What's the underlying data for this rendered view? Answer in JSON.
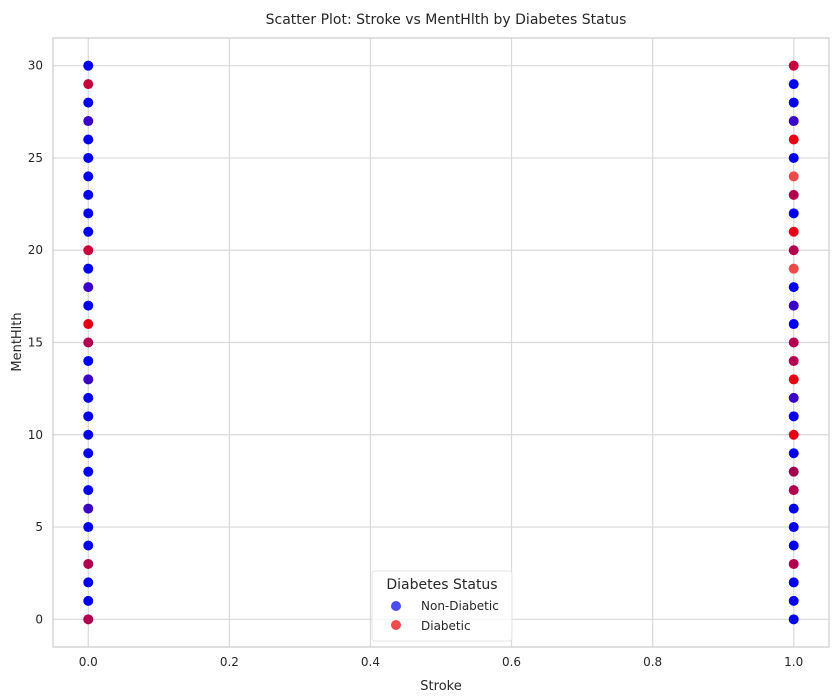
{
  "chart_data": {
    "type": "scatter",
    "title": "Scatter Plot: Stroke vs MentHlth by Diabetes Status",
    "xlabel": "Stroke",
    "ylabel": "MentHlth",
    "xlim": [
      -0.05,
      1.05
    ],
    "ylim": [
      -1.5,
      31.5
    ],
    "xticks": [
      0.0,
      0.2,
      0.4,
      0.6,
      0.8,
      1.0
    ],
    "xtick_labels": [
      "0.0",
      "0.2",
      "0.4",
      "0.6",
      "0.8",
      "1.0"
    ],
    "yticks": [
      0,
      5,
      10,
      15,
      20,
      25,
      30
    ],
    "ytick_labels": [
      "0",
      "5",
      "10",
      "15",
      "20",
      "25",
      "30"
    ],
    "grid": true,
    "legend": {
      "title": "Diabetes Status",
      "placement": "lower-center",
      "entries": [
        {
          "label": "Non-Diabetic",
          "color": "#4b4bf0"
        },
        {
          "label": "Diabetic",
          "color": "#f04b4b"
        }
      ]
    },
    "points": [
      {
        "x": 0,
        "y": 0,
        "color": "#b0004f"
      },
      {
        "x": 0,
        "y": 1,
        "color": "#0000ee"
      },
      {
        "x": 0,
        "y": 2,
        "color": "#0000ee"
      },
      {
        "x": 0,
        "y": 3,
        "color": "#b0004f"
      },
      {
        "x": 0,
        "y": 4,
        "color": "#0000ee"
      },
      {
        "x": 0,
        "y": 5,
        "color": "#0000ee"
      },
      {
        "x": 0,
        "y": 6,
        "color": "#3a00c8"
      },
      {
        "x": 0,
        "y": 7,
        "color": "#0000ee"
      },
      {
        "x": 0,
        "y": 8,
        "color": "#0000ee"
      },
      {
        "x": 0,
        "y": 9,
        "color": "#0000ee"
      },
      {
        "x": 0,
        "y": 10,
        "color": "#0000ee"
      },
      {
        "x": 0,
        "y": 11,
        "color": "#0000ee"
      },
      {
        "x": 0,
        "y": 12,
        "color": "#0000ee"
      },
      {
        "x": 0,
        "y": 13,
        "color": "#3a00c8"
      },
      {
        "x": 0,
        "y": 14,
        "color": "#0000ee"
      },
      {
        "x": 0,
        "y": 15,
        "color": "#b0004f"
      },
      {
        "x": 0,
        "y": 16,
        "color": "#e60014"
      },
      {
        "x": 0,
        "y": 17,
        "color": "#0000ee"
      },
      {
        "x": 0,
        "y": 18,
        "color": "#3a00c8"
      },
      {
        "x": 0,
        "y": 19,
        "color": "#0000ee"
      },
      {
        "x": 0,
        "y": 20,
        "color": "#c8003c"
      },
      {
        "x": 0,
        "y": 21,
        "color": "#0000ee"
      },
      {
        "x": 0,
        "y": 22,
        "color": "#0000ee"
      },
      {
        "x": 0,
        "y": 23,
        "color": "#0000ee"
      },
      {
        "x": 0,
        "y": 24,
        "color": "#0000ee"
      },
      {
        "x": 0,
        "y": 25,
        "color": "#0000ee"
      },
      {
        "x": 0,
        "y": 26,
        "color": "#0000ee"
      },
      {
        "x": 0,
        "y": 27,
        "color": "#3a00c8"
      },
      {
        "x": 0,
        "y": 28,
        "color": "#0000ee"
      },
      {
        "x": 0,
        "y": 29,
        "color": "#c8003c"
      },
      {
        "x": 0,
        "y": 30,
        "color": "#0000ee"
      },
      {
        "x": 1,
        "y": 0,
        "color": "#0000ee"
      },
      {
        "x": 1,
        "y": 1,
        "color": "#0000ee"
      },
      {
        "x": 1,
        "y": 2,
        "color": "#0000ee"
      },
      {
        "x": 1,
        "y": 3,
        "color": "#b0004f"
      },
      {
        "x": 1,
        "y": 4,
        "color": "#0000ee"
      },
      {
        "x": 1,
        "y": 5,
        "color": "#0000ee"
      },
      {
        "x": 1,
        "y": 6,
        "color": "#0000ee"
      },
      {
        "x": 1,
        "y": 7,
        "color": "#b0004f"
      },
      {
        "x": 1,
        "y": 8,
        "color": "#a00050"
      },
      {
        "x": 1,
        "y": 9,
        "color": "#0000ee"
      },
      {
        "x": 1,
        "y": 10,
        "color": "#e60014"
      },
      {
        "x": 1,
        "y": 11,
        "color": "#0000ee"
      },
      {
        "x": 1,
        "y": 12,
        "color": "#3a00c8"
      },
      {
        "x": 1,
        "y": 13,
        "color": "#e60014"
      },
      {
        "x": 1,
        "y": 14,
        "color": "#b0004f"
      },
      {
        "x": 1,
        "y": 15,
        "color": "#b0004f"
      },
      {
        "x": 1,
        "y": 16,
        "color": "#0000ee"
      },
      {
        "x": 1,
        "y": 17,
        "color": "#3a00c8"
      },
      {
        "x": 1,
        "y": 18,
        "color": "#0000ee"
      },
      {
        "x": 1,
        "y": 19,
        "color": "#f04b4b"
      },
      {
        "x": 1,
        "y": 20,
        "color": "#b0004f"
      },
      {
        "x": 1,
        "y": 21,
        "color": "#e60014"
      },
      {
        "x": 1,
        "y": 22,
        "color": "#0000ee"
      },
      {
        "x": 1,
        "y": 23,
        "color": "#b0004f"
      },
      {
        "x": 1,
        "y": 24,
        "color": "#f04b4b"
      },
      {
        "x": 1,
        "y": 25,
        "color": "#0000ee"
      },
      {
        "x": 1,
        "y": 26,
        "color": "#e60014"
      },
      {
        "x": 1,
        "y": 27,
        "color": "#3a00c8"
      },
      {
        "x": 1,
        "y": 28,
        "color": "#0000ee"
      },
      {
        "x": 1,
        "y": 29,
        "color": "#0000ee"
      },
      {
        "x": 1,
        "y": 30,
        "color": "#c8003c"
      }
    ]
  }
}
